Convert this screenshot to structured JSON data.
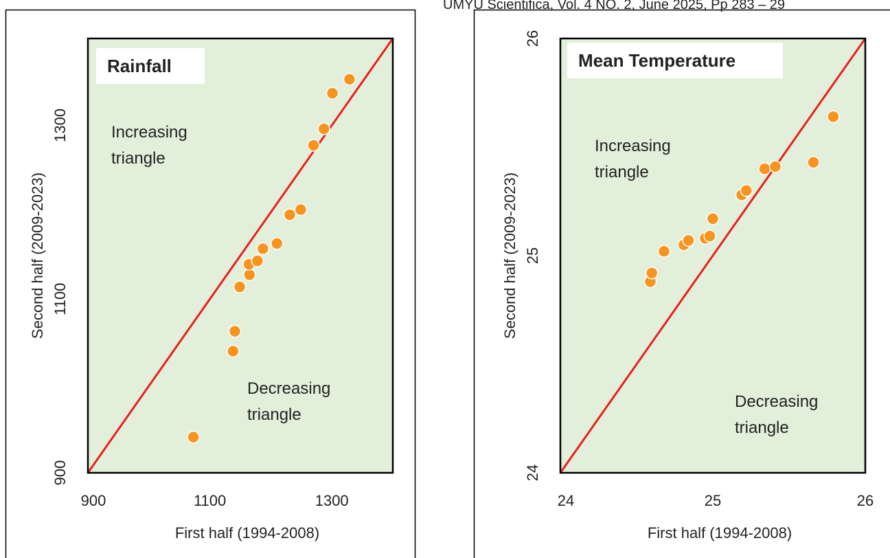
{
  "header": "UMYU Scientifica, Vol. 4 NO. 2, June 2025, Pp 283 – 29",
  "chart_data": [
    {
      "type": "scatter",
      "title": "Rainfall",
      "x_label": "First half (1994-2008)",
      "y_label": "Second half (2009-2023)",
      "annotations": [
        [
          "Increasing",
          "triangle"
        ],
        [
          "Decreasing",
          "triangle"
        ]
      ],
      "x": [
        1073,
        1138,
        1141,
        1149,
        1165,
        1164,
        1178,
        1187,
        1210,
        1231,
        1249,
        1270,
        1287,
        1301,
        1329
      ],
      "values": [
        941,
        1040,
        1063,
        1114,
        1128,
        1140,
        1144,
        1158,
        1164,
        1197,
        1203,
        1277,
        1296,
        1337,
        1353
      ],
      "color": "#f7941d",
      "line_color": "#e8201c",
      "background": "#e2efda",
      "xlim": [
        900,
        1400
      ],
      "ylim": [
        900,
        1400
      ],
      "xticks": [
        900,
        1100,
        1300
      ],
      "yticks": [
        900,
        1100,
        1300
      ]
    },
    {
      "type": "scatter",
      "title": "Mean Temperature",
      "x_label": "First half (1994-2008)",
      "y_label": "Second half (2009-2023)",
      "annotations": [
        [
          "Increasing",
          "triangle"
        ],
        [
          "Decreasing",
          "triangle"
        ]
      ],
      "x": [
        24.59,
        24.6,
        24.68,
        24.81,
        24.84,
        24.95,
        24.98,
        25.0,
        25.19,
        25.22,
        25.34,
        25.41,
        25.66,
        25.79
      ],
      "values": [
        24.88,
        24.92,
        25.02,
        25.05,
        25.07,
        25.08,
        25.09,
        25.17,
        25.28,
        25.3,
        25.4,
        25.41,
        25.43,
        25.64
      ],
      "color": "#f7941d",
      "line_color": "#e8201c",
      "background": "#e2efda",
      "xlim": [
        24,
        26
      ],
      "ylim": [
        24,
        26
      ],
      "xticks": [
        24,
        25,
        26
      ],
      "yticks": [
        24,
        25,
        26
      ]
    }
  ]
}
